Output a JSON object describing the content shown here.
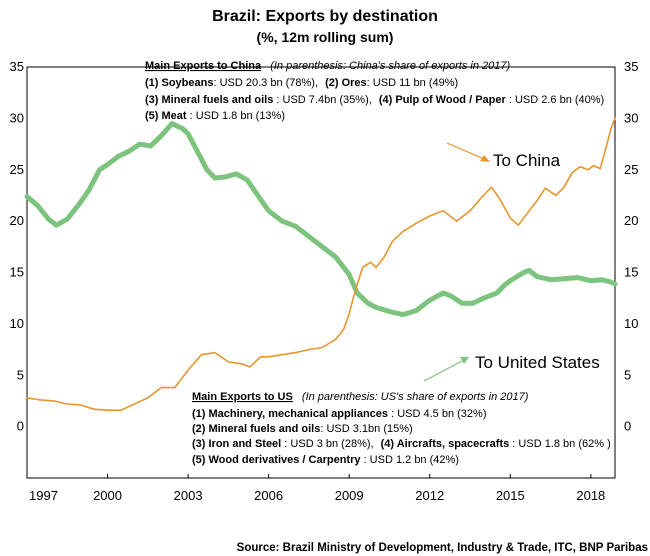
{
  "chart_data": {
    "type": "line",
    "title": "Brazil: Exports by destination",
    "subtitle": "(%, 12m rolling sum)",
    "x_ticks": [
      "1997",
      "2000",
      "2003",
      "2006",
      "2009",
      "2012",
      "2015",
      "2018"
    ],
    "y_ticks": [
      "0",
      "5",
      "10",
      "15",
      "20",
      "25",
      "30",
      "35"
    ],
    "xlim": [
      1997.0,
      2018.9
    ],
    "ylim": [
      -5,
      35
    ],
    "series": [
      {
        "name": "To China",
        "color": "#E8952E",
        "values": [
          [
            1997.0,
            2.8
          ],
          [
            1997.5,
            2.6
          ],
          [
            1998.0,
            2.5
          ],
          [
            1998.5,
            2.2
          ],
          [
            1999.0,
            2.1
          ],
          [
            1999.5,
            1.7
          ],
          [
            2000.0,
            1.6
          ],
          [
            2000.5,
            1.6
          ],
          [
            2001.0,
            2.2
          ],
          [
            2001.5,
            2.8
          ],
          [
            2002.0,
            3.8
          ],
          [
            2002.5,
            3.8
          ],
          [
            2003.0,
            5.5
          ],
          [
            2003.5,
            7.0
          ],
          [
            2004.0,
            7.2
          ],
          [
            2004.5,
            6.3
          ],
          [
            2005.0,
            6.1
          ],
          [
            2005.3,
            5.8
          ],
          [
            2005.7,
            6.8
          ],
          [
            2006.0,
            6.8
          ],
          [
            2006.5,
            7.0
          ],
          [
            2007.0,
            7.2
          ],
          [
            2007.5,
            7.5
          ],
          [
            2008.0,
            7.7
          ],
          [
            2008.5,
            8.5
          ],
          [
            2008.8,
            9.5
          ],
          [
            2009.0,
            11.0
          ],
          [
            2009.2,
            13.0
          ],
          [
            2009.5,
            15.5
          ],
          [
            2009.8,
            16.0
          ],
          [
            2010.0,
            15.5
          ],
          [
            2010.3,
            16.5
          ],
          [
            2010.6,
            18.0
          ],
          [
            2011.0,
            19.0
          ],
          [
            2011.5,
            19.8
          ],
          [
            2012.0,
            20.5
          ],
          [
            2012.5,
            21.0
          ],
          [
            2013.0,
            20.0
          ],
          [
            2013.5,
            21.0
          ],
          [
            2014.0,
            22.5
          ],
          [
            2014.3,
            23.3
          ],
          [
            2014.6,
            22.2
          ],
          [
            2015.0,
            20.3
          ],
          [
            2015.3,
            19.6
          ],
          [
            2015.7,
            21.0
          ],
          [
            2016.0,
            22.0
          ],
          [
            2016.3,
            23.2
          ],
          [
            2016.7,
            22.5
          ],
          [
            2017.0,
            23.3
          ],
          [
            2017.3,
            24.7
          ],
          [
            2017.6,
            25.3
          ],
          [
            2017.9,
            25.0
          ],
          [
            2018.1,
            25.4
          ],
          [
            2018.35,
            25.1
          ],
          [
            2018.55,
            27.0
          ],
          [
            2018.75,
            29.0
          ],
          [
            2018.9,
            30.0
          ]
        ]
      },
      {
        "name": "To United States",
        "color": "#7CC47E",
        "values": [
          [
            1997.0,
            22.4
          ],
          [
            1997.4,
            21.5
          ],
          [
            1997.8,
            20.2
          ],
          [
            1998.1,
            19.6
          ],
          [
            1998.5,
            20.2
          ],
          [
            1998.9,
            21.5
          ],
          [
            1999.3,
            23.0
          ],
          [
            1999.7,
            25.0
          ],
          [
            2000.0,
            25.5
          ],
          [
            2000.4,
            26.3
          ],
          [
            2000.8,
            26.8
          ],
          [
            2001.2,
            27.5
          ],
          [
            2001.6,
            27.3
          ],
          [
            2002.0,
            28.3
          ],
          [
            2002.4,
            29.5
          ],
          [
            2002.8,
            29.0
          ],
          [
            2003.0,
            28.5
          ],
          [
            2003.3,
            27.0
          ],
          [
            2003.7,
            25.0
          ],
          [
            2004.0,
            24.2
          ],
          [
            2004.4,
            24.3
          ],
          [
            2004.8,
            24.6
          ],
          [
            2005.2,
            24.0
          ],
          [
            2005.6,
            22.5
          ],
          [
            2006.0,
            21.0
          ],
          [
            2006.5,
            20.0
          ],
          [
            2007.0,
            19.5
          ],
          [
            2007.5,
            18.5
          ],
          [
            2008.0,
            17.5
          ],
          [
            2008.5,
            16.5
          ],
          [
            2009.0,
            14.8
          ],
          [
            2009.3,
            13.0
          ],
          [
            2009.7,
            12.0
          ],
          [
            2010.0,
            11.6
          ],
          [
            2010.5,
            11.2
          ],
          [
            2011.0,
            10.9
          ],
          [
            2011.5,
            11.3
          ],
          [
            2012.0,
            12.3
          ],
          [
            2012.5,
            13.0
          ],
          [
            2012.8,
            12.7
          ],
          [
            2013.2,
            12.0
          ],
          [
            2013.6,
            12.0
          ],
          [
            2014.0,
            12.5
          ],
          [
            2014.5,
            13.0
          ],
          [
            2014.8,
            13.8
          ],
          [
            2015.0,
            14.2
          ],
          [
            2015.5,
            15.0
          ],
          [
            2015.7,
            15.2
          ],
          [
            2016.0,
            14.6
          ],
          [
            2016.5,
            14.3
          ],
          [
            2017.0,
            14.4
          ],
          [
            2017.5,
            14.5
          ],
          [
            2018.0,
            14.2
          ],
          [
            2018.4,
            14.3
          ],
          [
            2018.7,
            14.1
          ],
          [
            2018.9,
            13.9
          ]
        ]
      }
    ],
    "series_labels": {
      "china": "To China",
      "us": "To United States"
    },
    "china_box": {
      "heading": "Main Exports to China",
      "note": "(In parenthesis: China's share of exports in 2017)",
      "items": [
        {
          "k": "(1) Soybeans",
          "v": ": USD 20.3 bn  (78%),"
        },
        {
          "k": "(2) Ores",
          "v": ": USD 11 bn (49%)"
        },
        {
          "k": "(3) Mineral fuels and oils",
          "v": " : USD 7.4bn (35%),"
        },
        {
          "k": "(4) Pulp of Wood / Paper",
          "v": " : USD 2.6 bn (40%)"
        },
        {
          "k": "(5) Meat",
          "v": " : USD 1.8 bn (13%)"
        }
      ]
    },
    "us_box": {
      "heading": "Main Exports to US",
      "note": "(In parenthesis:  US's share of exports in 2017)",
      "items": [
        {
          "k": "(1) Machinery, mechanical appliances",
          "v": " : USD 4.5 bn (32%)"
        },
        {
          "k": "(2) Mineral fuels and oils",
          "v": ": USD 3.1bn (15%)"
        },
        {
          "k": "(3) Iron and Steel",
          "v": " : USD 3 bn (28%),"
        },
        {
          "k": "(4) Aircrafts, spacecrafts",
          "v": " : USD 1.8 bn (62% )"
        },
        {
          "k": "(5) Wood derivatives / Carpentry",
          "v": " : USD 1.2 bn (42%)"
        }
      ]
    },
    "source": "Source: Brazil Ministry of Development, Industry & Trade, ITC,  BNP Paribas"
  }
}
